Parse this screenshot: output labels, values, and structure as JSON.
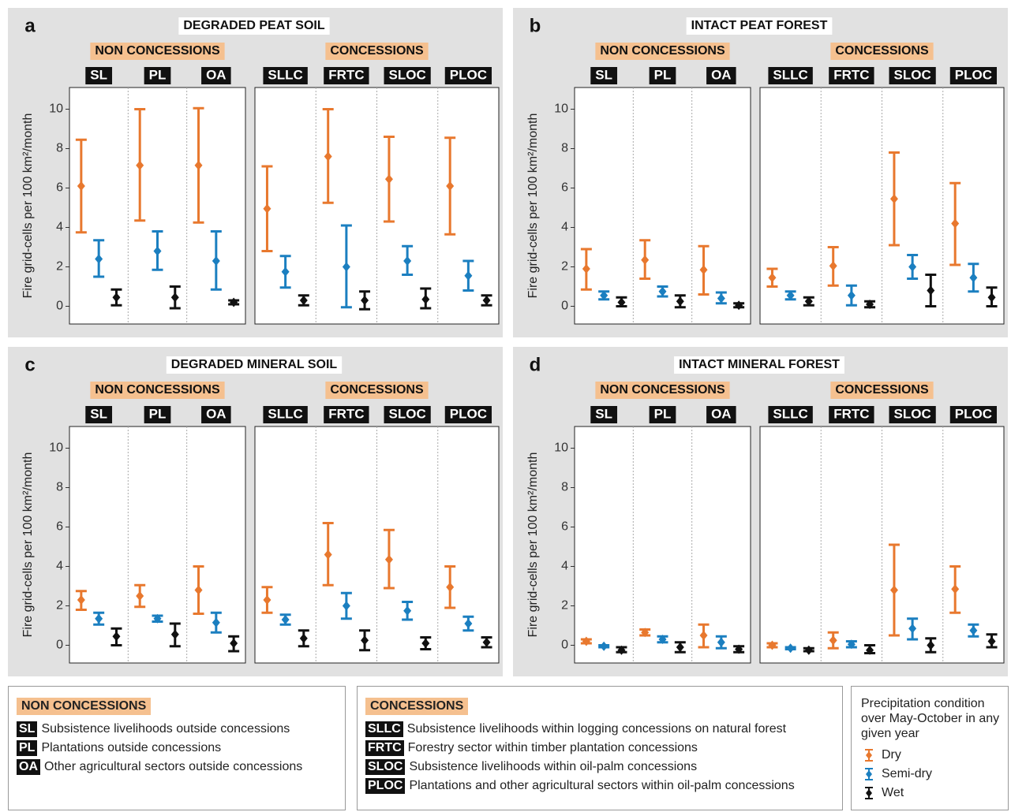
{
  "chart_data": {
    "type": "errorbar",
    "ylabel": "Fire grid-cells per 100 km²/month",
    "ylim": [
      -0.9,
      11.1
    ],
    "yticks": [
      0,
      2,
      4,
      6,
      8,
      10
    ],
    "groups": [
      {
        "name": "NON CONCESSIONS",
        "categories": [
          "SL",
          "PL",
          "OA"
        ],
        "descriptions": [
          "Subsistence livelihoods outside concessions",
          "Plantations outside concessions",
          "Other agricultural sectors outside concessions"
        ]
      },
      {
        "name": "CONCESSIONS",
        "categories": [
          "SLLC",
          "FRTC",
          "SLOC",
          "PLOC"
        ],
        "descriptions": [
          "Subsistence livelihoods within logging concessions on natural forest",
          "Forestry sector within timber plantation concessions",
          "Subsistence livelihoods within oil-palm concessions",
          "Plantations and other agricultural sectors within oil-palm concessions"
        ]
      }
    ],
    "legend": {
      "title": "Precipitation condition over May-October in any given year",
      "series": [
        {
          "name": "Dry",
          "color": "#e8782e"
        },
        {
          "name": "Semi-dry",
          "color": "#1b7fc0"
        },
        {
          "name": "Wet",
          "color": "#111111"
        }
      ]
    },
    "panels": [
      {
        "label": "a",
        "title": "DEGRADED PEAT SOIL",
        "series": [
          {
            "values": [
              6.1,
              7.15,
              7.15,
              4.95,
              7.6,
              6.45,
              6.1
            ],
            "lower": [
              3.75,
              4.35,
              4.25,
              2.8,
              5.25,
              4.3,
              3.65
            ],
            "upper": [
              8.45,
              10.0,
              10.05,
              7.1,
              10.0,
              8.6,
              8.55
            ]
          },
          {
            "values": [
              2.4,
              2.8,
              2.3,
              1.75,
              2.0,
              2.3,
              1.55
            ],
            "lower": [
              1.5,
              1.85,
              0.85,
              0.95,
              -0.05,
              1.6,
              0.8
            ],
            "upper": [
              3.35,
              3.8,
              3.8,
              2.55,
              4.1,
              3.05,
              2.3
            ]
          },
          {
            "values": [
              0.45,
              0.45,
              0.2,
              0.3,
              0.3,
              0.35,
              0.3
            ],
            "lower": [
              0.05,
              -0.1,
              0.1,
              0.05,
              -0.15,
              -0.1,
              0.05
            ],
            "upper": [
              0.85,
              1.0,
              0.3,
              0.55,
              0.75,
              0.9,
              0.55
            ]
          }
        ]
      },
      {
        "label": "b",
        "title": "INTACT PEAT FOREST",
        "series": [
          {
            "values": [
              1.9,
              2.35,
              1.85,
              1.45,
              2.05,
              5.45,
              4.2
            ],
            "lower": [
              0.85,
              1.4,
              0.6,
              1.0,
              1.05,
              3.1,
              2.1
            ],
            "upper": [
              2.9,
              3.35,
              3.05,
              1.9,
              3.0,
              7.8,
              6.25
            ]
          },
          {
            "values": [
              0.55,
              0.75,
              0.4,
              0.55,
              0.55,
              2.0,
              1.45
            ],
            "lower": [
              0.35,
              0.5,
              0.15,
              0.35,
              0.05,
              1.4,
              0.75
            ],
            "upper": [
              0.75,
              1.0,
              0.7,
              0.75,
              1.05,
              2.6,
              2.15
            ]
          },
          {
            "values": [
              0.2,
              0.25,
              0.05,
              0.25,
              0.1,
              0.8,
              0.45
            ],
            "lower": [
              0.0,
              -0.05,
              -0.05,
              0.05,
              -0.05,
              0.0,
              0.0
            ],
            "upper": [
              0.45,
              0.55,
              0.15,
              0.45,
              0.25,
              1.6,
              0.95
            ]
          }
        ]
      },
      {
        "label": "c",
        "title": "DEGRADED MINERAL SOIL",
        "series": [
          {
            "values": [
              2.3,
              2.5,
              2.8,
              2.3,
              4.6,
              4.35,
              2.95
            ],
            "lower": [
              1.8,
              1.95,
              1.6,
              1.65,
              3.05,
              2.9,
              1.9
            ],
            "upper": [
              2.75,
              3.05,
              4.0,
              2.95,
              6.2,
              5.85,
              4.0
            ]
          },
          {
            "values": [
              1.35,
              1.35,
              1.15,
              1.3,
              2.0,
              1.75,
              1.1
            ],
            "lower": [
              1.05,
              1.2,
              0.65,
              1.05,
              1.35,
              1.3,
              0.75
            ],
            "upper": [
              1.65,
              1.5,
              1.65,
              1.55,
              2.65,
              2.2,
              1.45
            ]
          },
          {
            "values": [
              0.45,
              0.55,
              0.1,
              0.35,
              0.25,
              0.1,
              0.15
            ],
            "lower": [
              0.0,
              -0.05,
              -0.3,
              -0.05,
              -0.25,
              -0.2,
              -0.1
            ],
            "upper": [
              0.85,
              1.1,
              0.45,
              0.75,
              0.75,
              0.4,
              0.4
            ]
          }
        ]
      },
      {
        "label": "d",
        "title": "INTACT MINERAL FOREST",
        "series": [
          {
            "values": [
              0.2,
              0.65,
              0.5,
              0.0,
              0.25,
              2.8,
              2.85
            ],
            "lower": [
              0.1,
              0.5,
              -0.1,
              -0.1,
              -0.15,
              0.5,
              1.65
            ],
            "upper": [
              0.3,
              0.8,
              1.05,
              0.1,
              0.65,
              5.1,
              4.0
            ]
          },
          {
            "values": [
              -0.05,
              0.3,
              0.15,
              -0.15,
              0.05,
              0.85,
              0.75
            ],
            "lower": [
              -0.1,
              0.15,
              -0.15,
              -0.2,
              -0.1,
              0.3,
              0.45
            ],
            "upper": [
              0.0,
              0.45,
              0.45,
              -0.1,
              0.2,
              1.35,
              1.05
            ]
          },
          {
            "values": [
              -0.25,
              -0.1,
              -0.2,
              -0.25,
              -0.25,
              0.0,
              0.2
            ],
            "lower": [
              -0.35,
              -0.35,
              -0.35,
              -0.3,
              -0.4,
              -0.35,
              -0.1
            ],
            "upper": [
              -0.1,
              0.15,
              -0.05,
              -0.15,
              0.0,
              0.35,
              0.55
            ]
          }
        ]
      }
    ]
  }
}
